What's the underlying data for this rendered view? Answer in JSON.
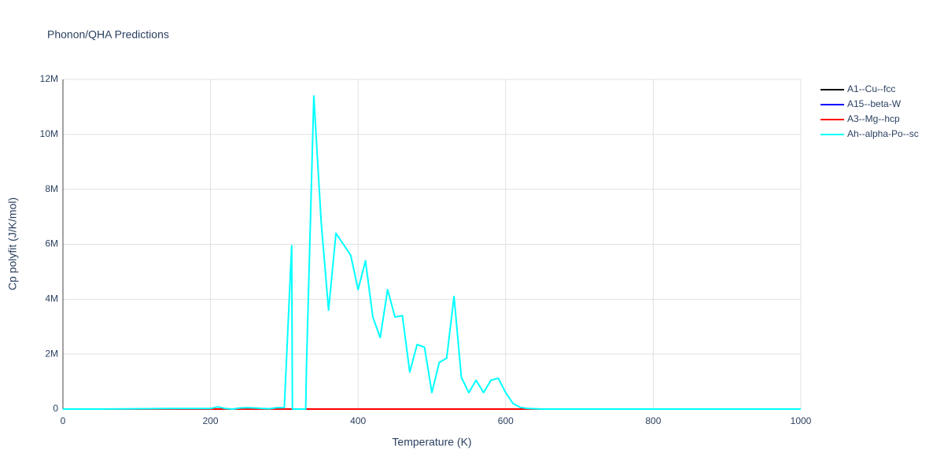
{
  "chart_data": {
    "type": "line",
    "title": "Phonon/QHA Predictions",
    "x_label": "Temperature (K)",
    "y_label": "Cp polyfit (J/K/mol)",
    "xlim": [
      0,
      1000
    ],
    "xticks": [
      0,
      200,
      400,
      600,
      800,
      1000
    ],
    "ylim": [
      0,
      12000000
    ],
    "yticks": [
      0,
      {
        "value": 2000000,
        "label": "2M"
      },
      {
        "value": 4000000,
        "label": "4M"
      },
      {
        "value": 6000000,
        "label": "6M"
      },
      {
        "value": 8000000,
        "label": "8M"
      },
      {
        "value": 10000000,
        "label": "10M"
      },
      {
        "value": 12000000,
        "label": "12M"
      }
    ],
    "grid": true,
    "legend": "right",
    "x": [
      0,
      50,
      100,
      150,
      200,
      210,
      220,
      230,
      240,
      250,
      260,
      270,
      280,
      290,
      300,
      310,
      311,
      320,
      329,
      330,
      340,
      350,
      360,
      370,
      380,
      390,
      400,
      410,
      420,
      430,
      440,
      450,
      460,
      470,
      480,
      490,
      500,
      510,
      520,
      530,
      540,
      550,
      560,
      570,
      580,
      590,
      600,
      610,
      620,
      630,
      640,
      650,
      700,
      750,
      800,
      850,
      900,
      950,
      1000
    ],
    "series": [
      {
        "name": "A1--Cu--fcc",
        "color": "#000000",
        "values": [
          0,
          0,
          0,
          0,
          0,
          0,
          0,
          0,
          0,
          0,
          0,
          0,
          0,
          0,
          0,
          0,
          0,
          0,
          0,
          0,
          0,
          0,
          0,
          0,
          0,
          0,
          0,
          0,
          0,
          0,
          0,
          0,
          0,
          0,
          0,
          0,
          0,
          0,
          0,
          0,
          0,
          0,
          0,
          0,
          0,
          0,
          0,
          0,
          0,
          0,
          0,
          0,
          0,
          0,
          0,
          0,
          0,
          0,
          0
        ]
      },
      {
        "name": "A15--beta-W",
        "color": "#0000ff",
        "values": [
          0,
          0,
          0,
          0,
          0,
          0,
          0,
          0,
          0,
          0,
          0,
          0,
          0,
          0,
          0,
          0,
          0,
          0,
          0,
          0,
          0,
          0,
          0,
          0,
          0,
          0,
          0,
          0,
          0,
          0,
          0,
          0,
          0,
          0,
          0,
          0,
          0,
          0,
          0,
          0,
          0,
          0,
          0,
          0,
          0,
          0,
          0,
          0,
          0,
          0,
          0,
          0,
          0,
          0,
          0,
          0,
          0,
          0,
          0
        ]
      },
      {
        "name": "A3--Mg--hcp",
        "color": "#ff0000",
        "values": [
          0,
          0,
          0,
          0,
          0,
          0,
          0,
          0,
          0,
          0,
          0,
          0,
          0,
          0,
          0,
          0,
          0,
          0,
          0,
          0,
          0,
          0,
          0,
          0,
          0,
          0,
          0,
          0,
          0,
          0,
          0,
          0,
          0,
          0,
          0,
          0,
          0,
          0,
          0,
          0,
          0,
          0,
          0,
          0,
          0,
          0,
          0,
          0,
          0,
          0,
          0,
          0,
          0,
          0,
          0,
          0,
          0,
          0,
          0
        ]
      },
      {
        "name": "Ah--alpha-Po--sc",
        "color": "#00ffff",
        "values": [
          0,
          0,
          10000,
          20000,
          20000,
          80000,
          20000,
          0,
          40000,
          50000,
          40000,
          20000,
          10000,
          50000,
          50000,
          5950000,
          0,
          0,
          0,
          1500000,
          11400000,
          6800000,
          3600000,
          6400000,
          6000000,
          5600000,
          4350000,
          5400000,
          3350000,
          2600000,
          4350000,
          3350000,
          3400000,
          1350000,
          2350000,
          2250000,
          600000,
          1700000,
          1850000,
          4100000,
          1150000,
          600000,
          1050000,
          600000,
          1050000,
          1120000,
          600000,
          200000,
          60000,
          20000,
          10000,
          0,
          0,
          0,
          0,
          0,
          0,
          0,
          0
        ]
      }
    ]
  }
}
